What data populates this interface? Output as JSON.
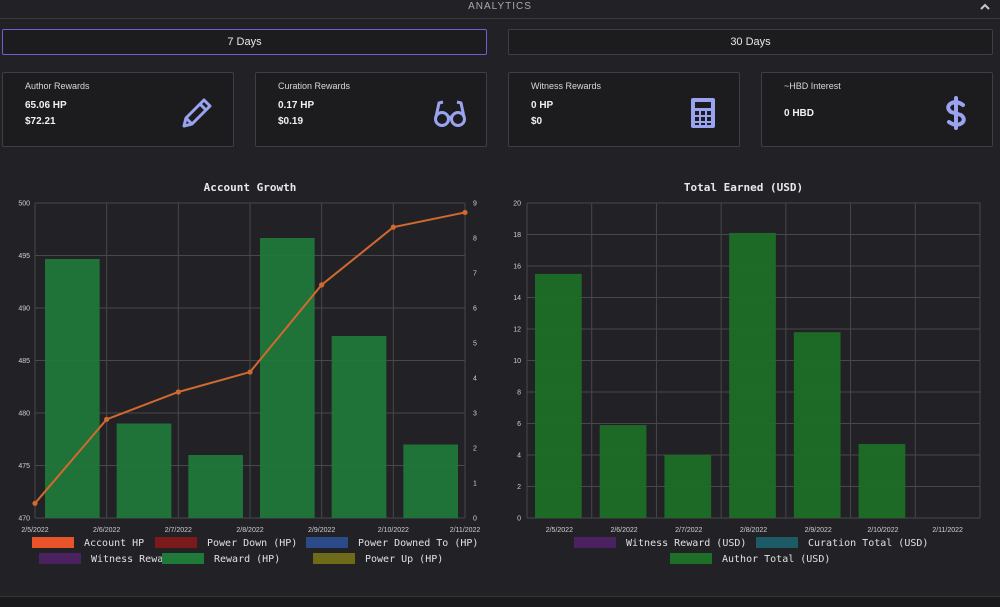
{
  "header": {
    "title": "ANALYTICS",
    "collapse_icon": "chevron-up-icon"
  },
  "range_buttons": [
    {
      "label": "7 Days",
      "active": true
    },
    {
      "label": "30 Days",
      "active": false
    }
  ],
  "cards": [
    {
      "title": "Author Rewards",
      "value1": "65.06 HP",
      "value2": "$72.21",
      "icon": "pencil-icon"
    },
    {
      "title": "Curation Rewards",
      "value1": "0.17 HP",
      "value2": "$0.19",
      "icon": "glasses-icon"
    },
    {
      "title": "Witness Rewards",
      "value1": "0 HP",
      "value2": "$0",
      "icon": "calculator-icon"
    },
    {
      "title": "~HBD Interest",
      "value1": "0 HBD",
      "value2": "",
      "icon": "dollar-icon"
    }
  ],
  "colors": {
    "accent": "#6d5fd6",
    "icon": "#9aa3f0",
    "reward_bar": "#1f7a3a",
    "author_bar": "#1d6e26",
    "line": "#d2692f"
  },
  "chart_data": [
    {
      "type": "bar",
      "title": "Account Growth",
      "categories": [
        "2/5/2022",
        "2/6/2022",
        "2/7/2022",
        "2/8/2022",
        "2/9/2022",
        "2/10/2022",
        "2/11/2022"
      ],
      "ylim_left": [
        470,
        500
      ],
      "yticks_left": [
        470,
        475,
        480,
        485,
        490,
        495,
        500
      ],
      "ylim_right": [
        0,
        9
      ],
      "yticks_right": [
        0,
        1,
        2,
        3,
        4,
        5,
        6,
        7,
        8,
        9
      ],
      "grid": true,
      "legend_position": "bottom",
      "series": [
        {
          "name": "Account HP",
          "type": "line",
          "axis": "left",
          "color": "#d2692f",
          "legend_color": "#e8532a",
          "values": [
            471.4,
            479.4,
            482.0,
            483.9,
            492.2,
            497.7,
            499.1
          ]
        },
        {
          "name": "Power Down (HP)",
          "type": "legend",
          "color": "#7a1a1a"
        },
        {
          "name": "Power Downed To (HP)",
          "type": "legend",
          "color": "#2a4a8a"
        },
        {
          "name": "Witness Reward (HP)",
          "type": "legend",
          "color": "#4a2260"
        },
        {
          "name": "Reward (HP)",
          "type": "bar",
          "axis": "right",
          "color": "#1f7a3a",
          "legend_color": "#1f7a3a",
          "values": [
            7.4,
            2.7,
            1.8,
            8.0,
            5.2,
            2.1,
            0
          ]
        },
        {
          "name": "Power Up (HP)",
          "type": "legend",
          "color": "#6d6a1a"
        }
      ]
    },
    {
      "type": "bar",
      "title": "Total Earned (USD)",
      "categories": [
        "2/5/2022",
        "2/6/2022",
        "2/7/2022",
        "2/8/2022",
        "2/9/2022",
        "2/10/2022",
        "2/11/2022"
      ],
      "ylim": [
        0,
        20
      ],
      "yticks": [
        0,
        2,
        4,
        6,
        8,
        10,
        12,
        14,
        16,
        18,
        20
      ],
      "grid": true,
      "legend_position": "bottom",
      "series": [
        {
          "name": "Witness Reward (USD)",
          "type": "legend",
          "color": "#4a2260"
        },
        {
          "name": "Curation Total (USD)",
          "type": "legend",
          "color": "#1c5a66"
        },
        {
          "name": "Author Total (USD)",
          "type": "bar",
          "color": "#1d6e26",
          "values": [
            15.5,
            5.9,
            4.0,
            18.1,
            11.8,
            4.7,
            0
          ]
        }
      ]
    }
  ]
}
